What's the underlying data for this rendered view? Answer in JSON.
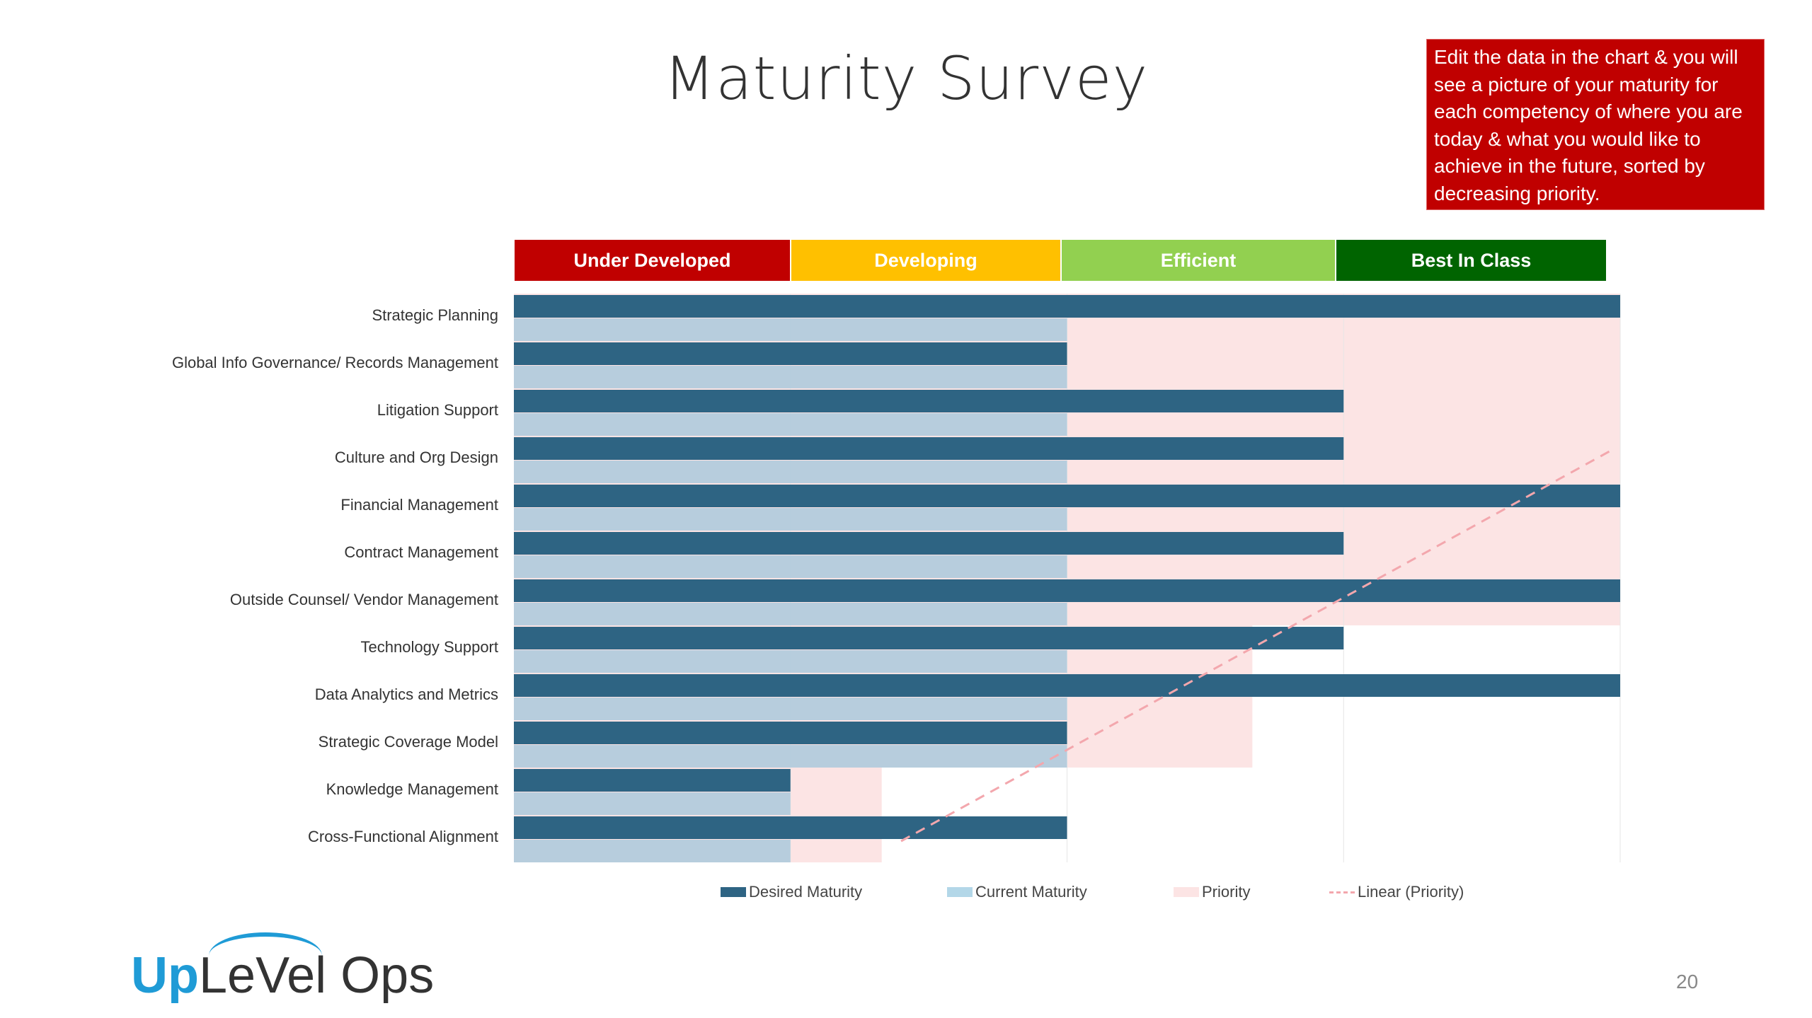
{
  "page": {
    "title": "Maturity Survey",
    "note": "Edit the data in the chart & you will see a picture of your maturity for each competency of where you are today & what you would like to achieve in the future, sorted by decreasing priority.",
    "page_number": "20",
    "logo": {
      "up": "Up",
      "rest": "LeVel Ops"
    }
  },
  "bands": {
    "under_developed": "Under Developed",
    "developing": "Developing",
    "efficient": "Efficient",
    "best_in_class": "Best In Class"
  },
  "legend": {
    "desired": "Desired Maturity",
    "current": "Current Maturity",
    "priority": "Priority",
    "linear": "Linear (Priority)"
  },
  "colors": {
    "desired": "#2e6483",
    "current": "#b3cbdc",
    "priority": "#fce4e4",
    "trend": "#f3a7ad",
    "under_developed": "#c00000",
    "developing": "#ffc000",
    "efficient": "#92d050",
    "best_in_class": "#006400"
  },
  "chart_data": {
    "type": "bar",
    "orientation": "horizontal",
    "xlim": [
      0,
      4
    ],
    "categories": [
      "Strategic Planning",
      "Global Info Governance/ Records Management",
      "Litigation Support",
      "Culture and Org Design",
      "Financial Management",
      "Contract Management",
      "Outside Counsel/ Vendor Management",
      "Technology Support",
      "Data Analytics and Metrics",
      "Strategic Coverage Model",
      "Knowledge Management",
      "Cross-Functional Alignment"
    ],
    "series": [
      {
        "name": "Desired Maturity",
        "values": [
          4,
          2,
          3,
          3,
          4,
          3,
          4,
          3,
          4,
          2,
          1,
          2
        ]
      },
      {
        "name": "Current Maturity",
        "values": [
          2,
          2,
          2,
          2,
          2,
          2,
          2,
          2,
          2,
          2,
          1,
          1
        ]
      },
      {
        "name": "Priority",
        "values": [
          4,
          4,
          4,
          4,
          4,
          4,
          4,
          2.67,
          2.67,
          2.67,
          1.33,
          1.33
        ]
      }
    ],
    "trendline": {
      "name": "Linear (Priority)",
      "style": "dashed",
      "series": "Priority"
    },
    "legend_position": "bottom"
  }
}
